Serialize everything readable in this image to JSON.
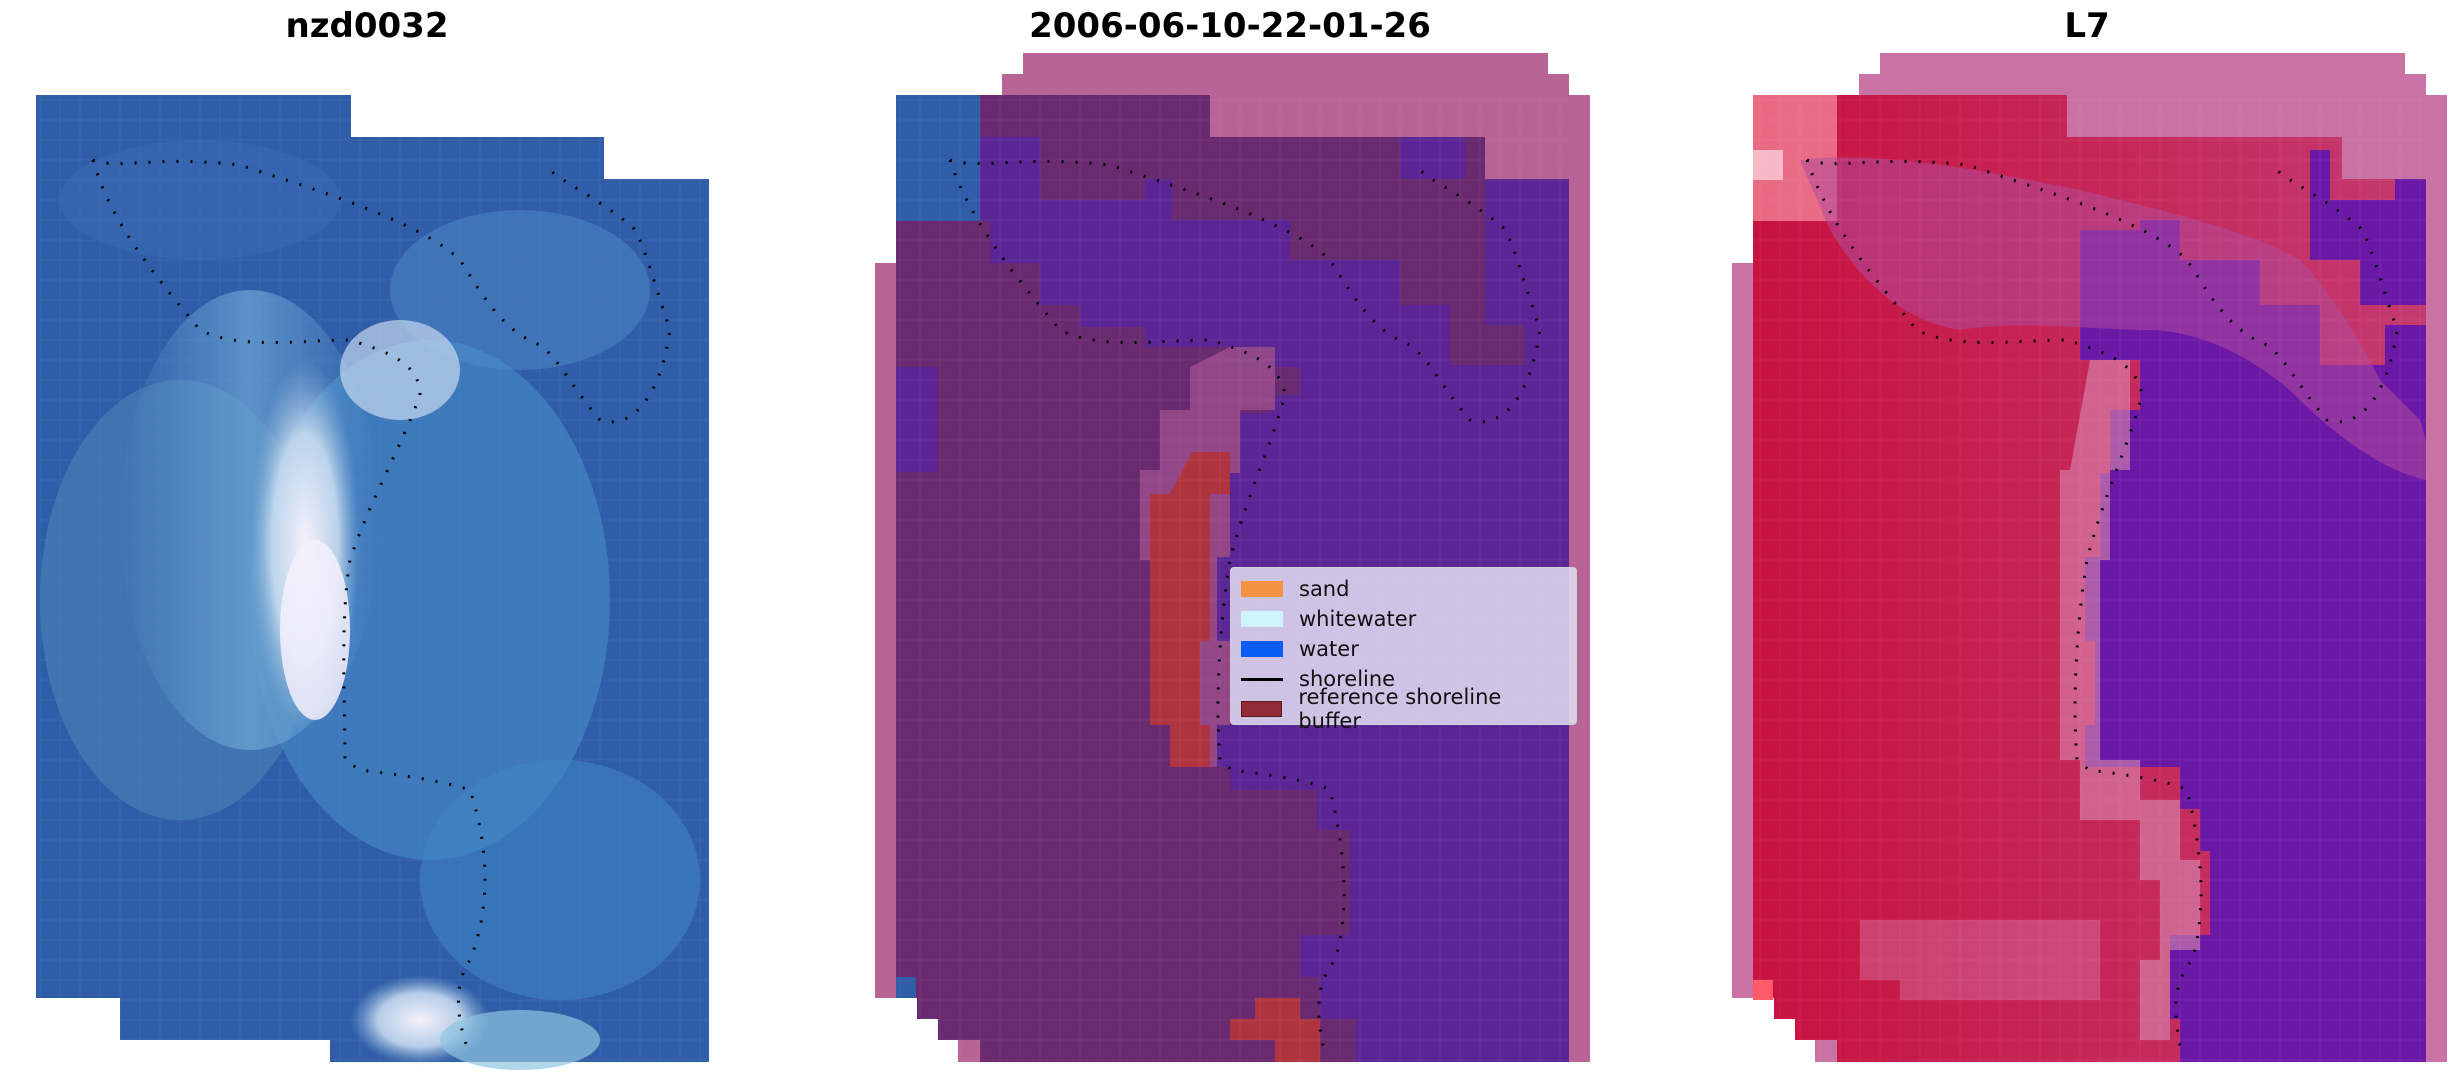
{
  "panels": [
    {
      "title": "nzd0032"
    },
    {
      "title": "2006-06-10-22-01-26"
    },
    {
      "title": "L7"
    }
  ],
  "legend": {
    "items": [
      {
        "label": "sand",
        "color": "#f59342",
        "kind": "patch"
      },
      {
        "label": "whitewater",
        "color": "#cff5fa",
        "kind": "patch"
      },
      {
        "label": "water",
        "color": "#0a5cf5",
        "kind": "patch"
      },
      {
        "label": "shoreline",
        "color": "#000000",
        "kind": "line"
      },
      {
        "label": "reference shoreline buffer",
        "color": "#922b36",
        "kind": "patch"
      }
    ]
  },
  "colors": {
    "rgb_water": "#2f5da8",
    "rgb_light": "#6fa8d6",
    "rgb_white": "#f2f0fa",
    "class_purple": "#5b2595",
    "class_dark": "#6a2a70",
    "class_pink": "#b86496",
    "buffer_red": "#b03440",
    "index_red": "#c8123f",
    "index_purple": "#6c18a6"
  }
}
